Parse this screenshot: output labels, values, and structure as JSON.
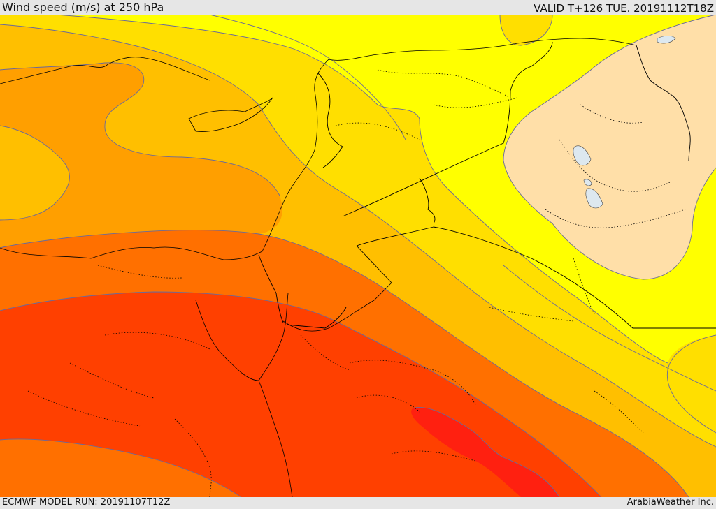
{
  "header": {
    "title": "Wind speed (m/s) at 250 hPa",
    "valid_time": "VALID T+126 TUE. 20191112T18Z"
  },
  "footer": {
    "model_run": "ECMWF MODEL RUN: 20191107T12Z",
    "credit": "ArabiaWeather Inc."
  },
  "map": {
    "colors": {
      "band_1": "#ffdfa8",
      "band_2": "#ffff00",
      "band_3": "#ffdf00",
      "band_4": "#ffbf00",
      "band_5": "#ff9f00",
      "band_6": "#ff7000",
      "band_7": "#ff4000",
      "band_8": "#ff2010",
      "lakes": "#dde8ef",
      "contour": "#6a6a9a",
      "border": "#000000"
    }
  }
}
